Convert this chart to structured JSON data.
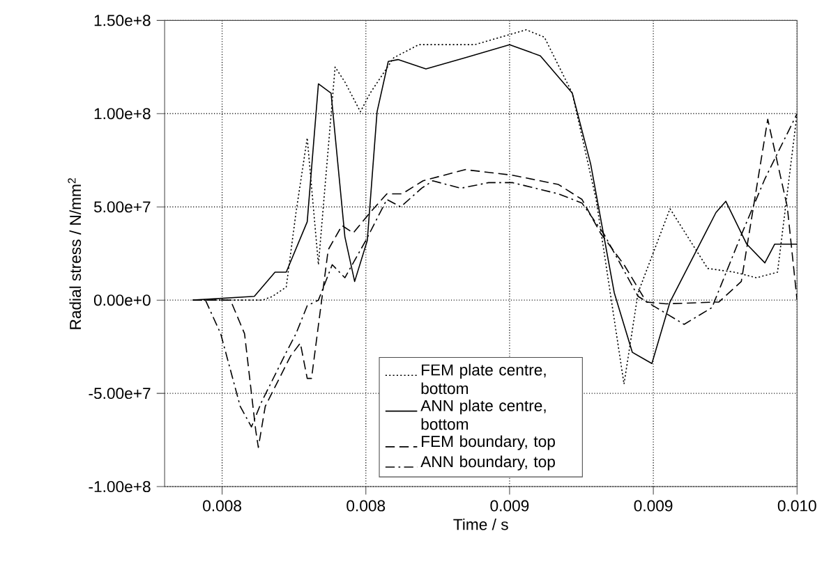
{
  "chart_data": {
    "type": "line",
    "xlabel": "Time / s",
    "ylabel": "Radial stress / N/mm$^{2}$",
    "xlim": [
      0.0078,
      0.01
    ],
    "xticks": [
      {
        "value": 0.008,
        "label": "0.008"
      },
      {
        "value": 0.0085,
        "label": "0.008"
      },
      {
        "value": 0.009,
        "label": "0.009"
      },
      {
        "value": 0.0095,
        "label": "0.009"
      },
      {
        "value": 0.01,
        "label": "0.010"
      }
    ],
    "ylim": [
      -100000000.0,
      150000000.0
    ],
    "yticks": [
      {
        "value": -100000000.0,
        "label": "-1.00e+8"
      },
      {
        "value": -50000000.0,
        "label": "-5.00e+7"
      },
      {
        "value": 0,
        "label": "0.00e+0"
      },
      {
        "value": 50000000.0,
        "label": "5.00e+7"
      },
      {
        "value": 100000000.0,
        "label": "1.00e+8"
      },
      {
        "value": 150000000.0,
        "label": "1.50e+8"
      }
    ],
    "grid": true,
    "legend": "bottom",
    "marker": "none",
    "series": [
      {
        "name": "FEM plate centre, bottom",
        "color": "#000000",
        "line_style": "dotted",
        "x": [
          0.007898,
          0.008141,
          0.008175,
          0.008223,
          0.008257,
          0.008296,
          0.008335,
          0.008393,
          0.008427,
          0.008481,
          0.008515,
          0.008597,
          0.008684,
          0.008879,
          0.009058,
          0.009121,
          0.009218,
          0.009301,
          0.009398,
          0.009447,
          0.009558,
          0.009689,
          0.009781,
          0.009859,
          0.009932,
          0.01
        ],
        "values": [
          0,
          0,
          2000000.0,
          7000000.0,
          47000000.0,
          87000000.0,
          19000000.0,
          125000000.0,
          117000000.0,
          101000000.0,
          111000000.0,
          130000000.0,
          137000000.0,
          137000000.0,
          145000000.0,
          141000000.0,
          111000000.0,
          54000000.0,
          -45000000.0,
          4000000.0,
          49000000.0,
          17000000.0,
          15000000.0,
          12000000.0,
          15000000.0,
          100000000.0
        ]
      },
      {
        "name": "ANN plate centre, bottom",
        "color": "#000000",
        "line_style": "solid",
        "x": [
          0.007898,
          0.008112,
          0.008184,
          0.008223,
          0.008296,
          0.008335,
          0.008379,
          0.008427,
          0.008461,
          0.008505,
          0.008539,
          0.008578,
          0.008612,
          0.008709,
          0.008845,
          0.009,
          0.009107,
          0.009218,
          0.009282,
          0.009364,
          0.009427,
          0.009495,
          0.009558,
          0.009718,
          0.009752,
          0.009825,
          0.009888,
          0.009922,
          0.01
        ],
        "values": [
          0,
          2000000.0,
          15000000.0,
          15000000.0,
          42000000.0,
          116000000.0,
          111000000.0,
          34000000.0,
          10000000.0,
          32000000.0,
          101000000.0,
          128000000.0,
          129000000.0,
          124000000.0,
          130000000.0,
          137000000.0,
          131000000.0,
          111000000.0,
          73000000.0,
          4000000.0,
          -28000000.0,
          -34000000.0,
          -1000000.0,
          47000000.0,
          53000000.0,
          30000000.0,
          20000000.0,
          30000000.0,
          30000000.0
        ]
      },
      {
        "name": "FEM boundary, top",
        "color": "#000000",
        "line_style": "dashed",
        "x": [
          0.007898,
          0.008029,
          0.008078,
          0.008117,
          0.008126,
          0.00815,
          0.008238,
          0.008272,
          0.008296,
          0.008311,
          0.008369,
          0.008417,
          0.008456,
          0.008515,
          0.008573,
          0.008626,
          0.008699,
          0.008845,
          0.00901,
          0.00917,
          0.009252,
          0.009316,
          0.009398,
          0.009476,
          0.009544,
          0.009728,
          0.009806,
          0.009898,
          0.009966,
          0.01
        ],
        "values": [
          0,
          0,
          -18000000.0,
          -70000000.0,
          -79000000.0,
          -57000000.0,
          -30000000.0,
          -23000000.0,
          -42000000.0,
          -42000000.0,
          27000000.0,
          40000000.0,
          36000000.0,
          47000000.0,
          57000000.0,
          57000000.0,
          64000000.0,
          70000000.0,
          67000000.0,
          62000000.0,
          54000000.0,
          36000000.0,
          19000000.0,
          -1000000.0,
          -2000000.0,
          -1000000.0,
          10000000.0,
          97000000.0,
          50000000.0,
          0
        ]
      },
      {
        "name": "ANN boundary, top",
        "color": "#000000",
        "line_style": "dashdot",
        "x": [
          0.007942,
          0.007995,
          0.008063,
          0.008102,
          0.008136,
          0.008223,
          0.008257,
          0.008296,
          0.008335,
          0.008383,
          0.008427,
          0.0085,
          0.008573,
          0.008621,
          0.008694,
          0.008733,
          0.00883,
          0.008927,
          0.00901,
          0.00917,
          0.009252,
          0.00933,
          0.009447,
          0.00951,
          0.009607,
          0.009704,
          0.009806,
          0.009888,
          0.01
        ],
        "values": [
          0,
          -18000000.0,
          -57000000.0,
          -68000000.0,
          -55000000.0,
          -28000000.0,
          -18000000.0,
          -3000000.0,
          0,
          19000000.0,
          12000000.0,
          32000000.0,
          54000000.0,
          50000000.0,
          60000000.0,
          64000000.0,
          60000000.0,
          63000000.0,
          63000000.0,
          57000000.0,
          52000000.0,
          35000000.0,
          2000000.0,
          -4000000.0,
          -13000000.0,
          -4000000.0,
          35000000.0,
          65000000.0,
          100000000.0
        ]
      }
    ]
  }
}
